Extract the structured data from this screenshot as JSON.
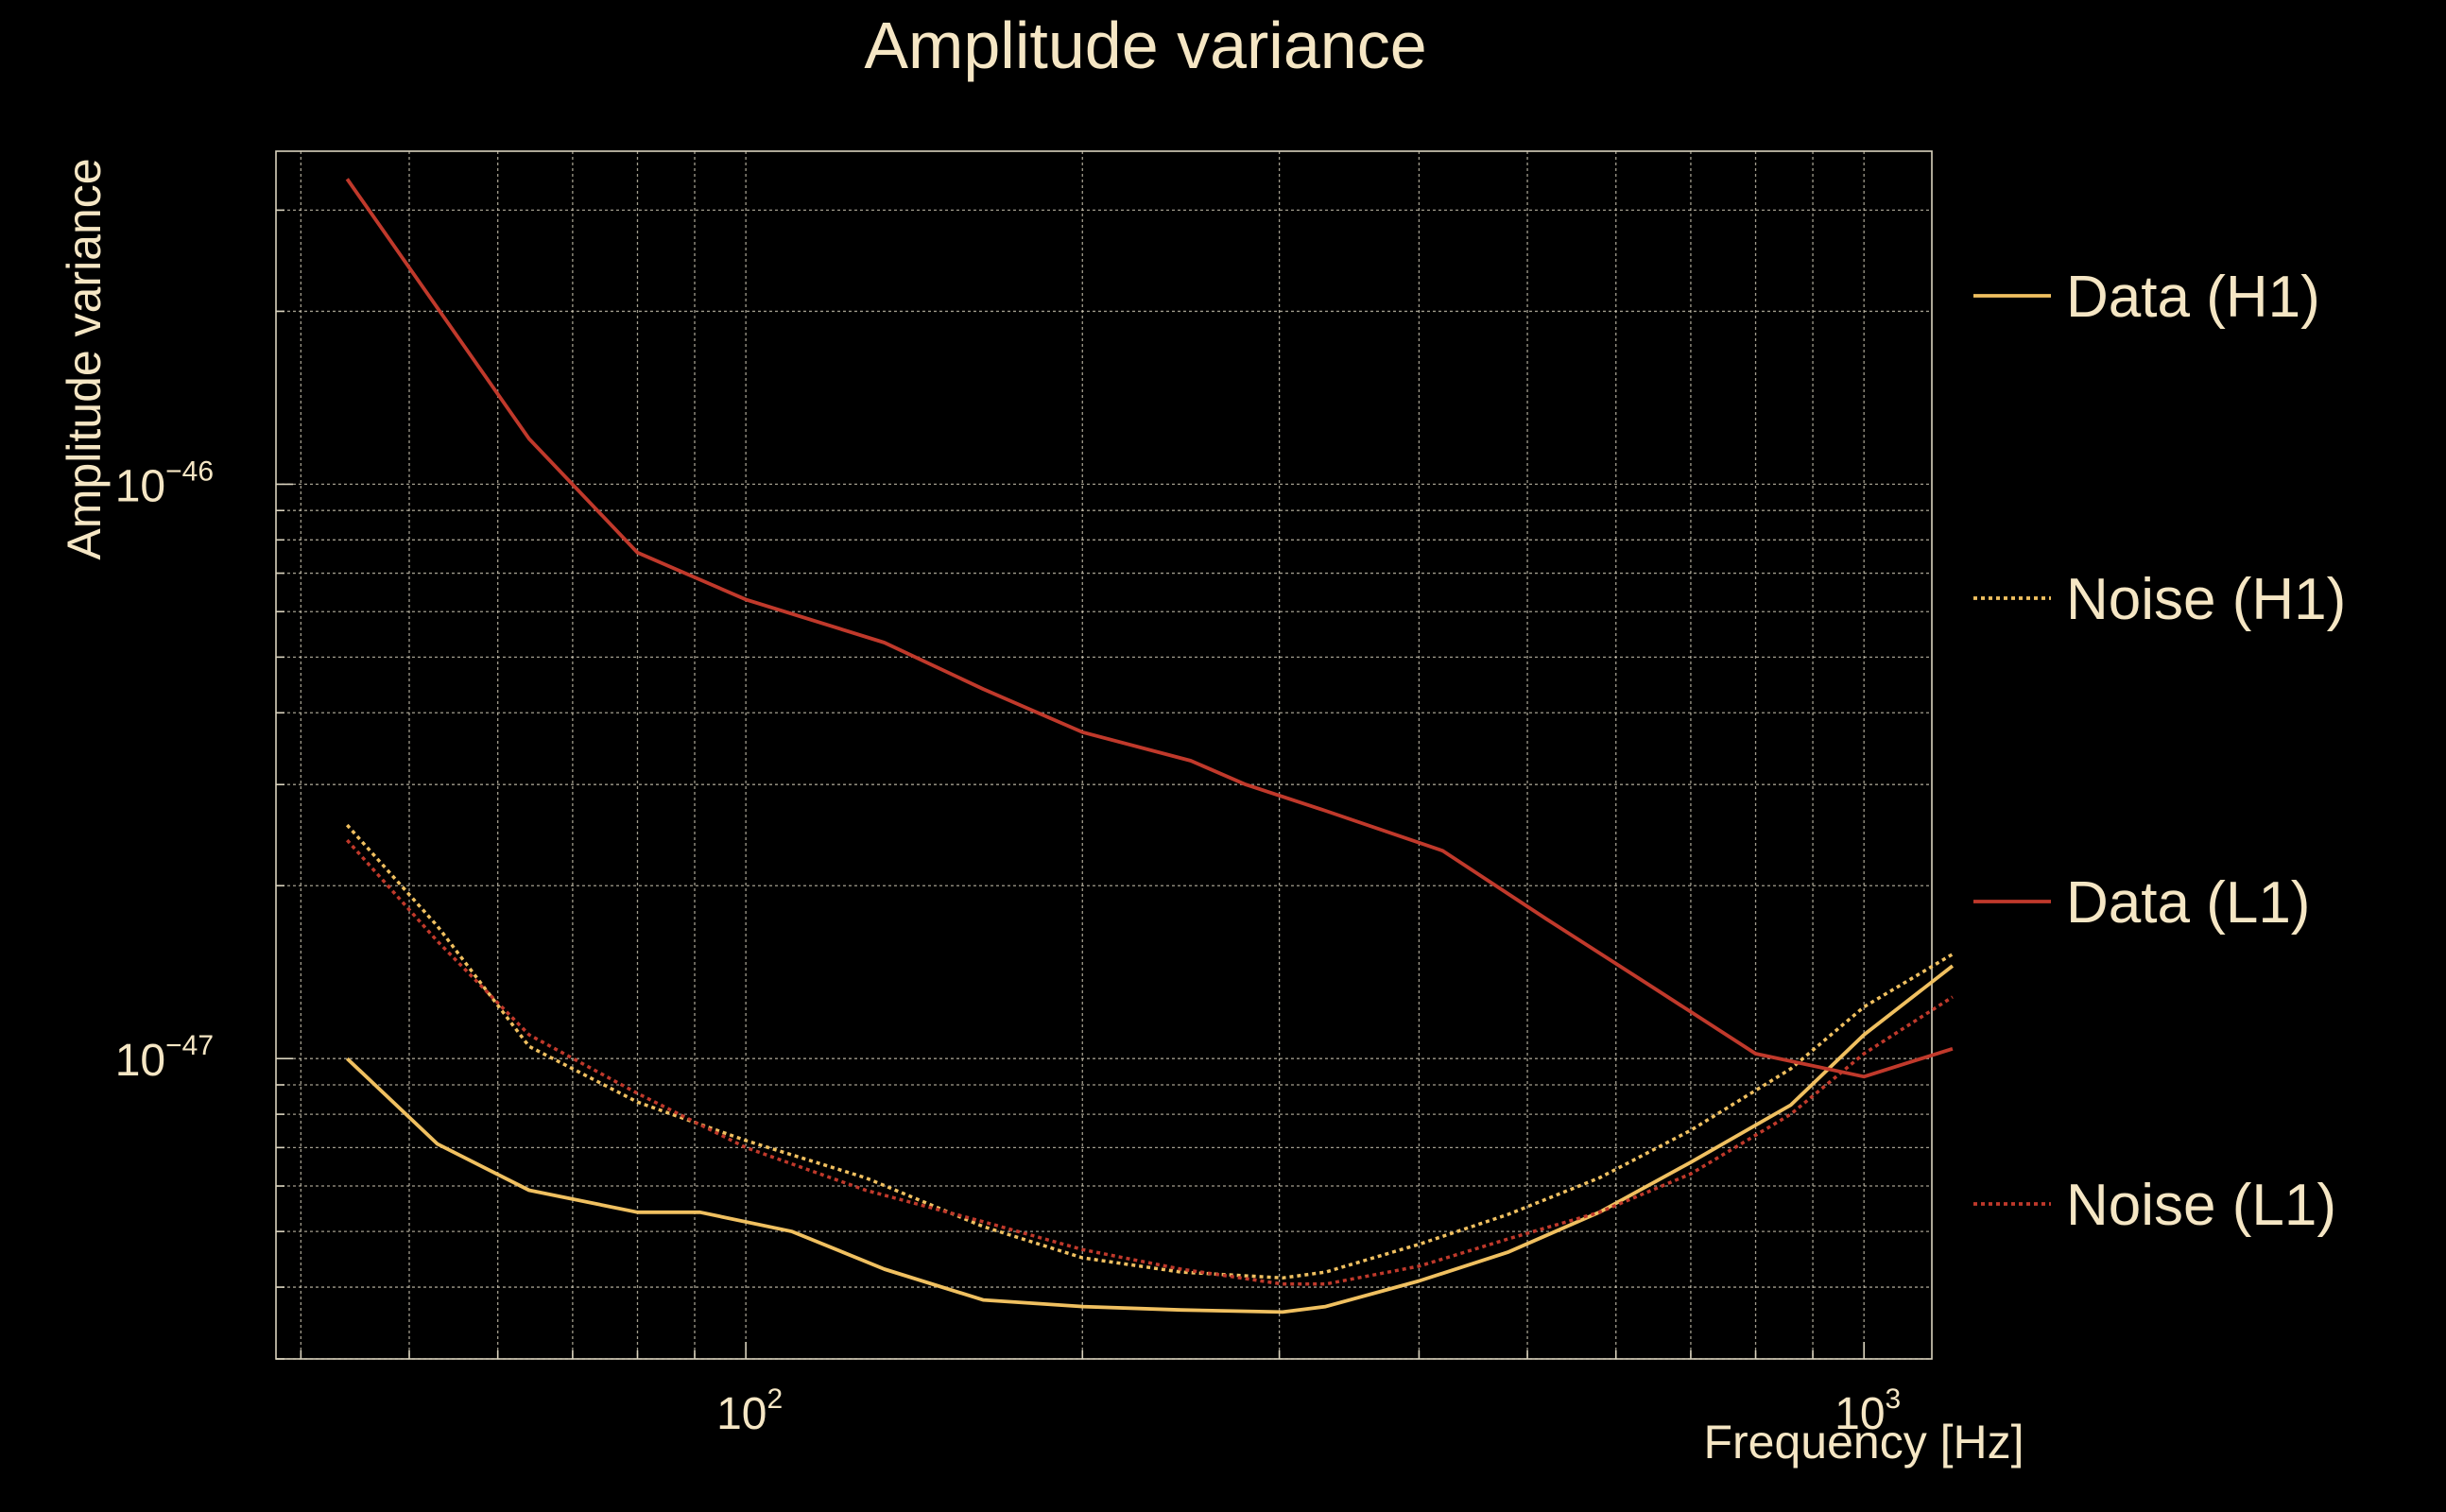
{
  "chart_data": {
    "type": "line",
    "title": "Amplitude variance",
    "xlabel": "Frequency [Hz]",
    "ylabel": "Amplitude variance",
    "xscale": "log",
    "yscale": "log",
    "xlim": [
      38,
      1150
    ],
    "ylim": [
      3e-48,
      3.8e-46
    ],
    "grid": true,
    "legend_position": "right",
    "xticks": [
      {
        "base": "10",
        "exp": "2",
        "value": 100
      },
      {
        "base": "10",
        "exp": "3",
        "value": 1000
      }
    ],
    "yticks": [
      {
        "base": "10",
        "exp": "−47",
        "value": 1e-47
      },
      {
        "base": "10",
        "exp": "−46",
        "value": 1e-46
      }
    ],
    "series": [
      {
        "name": "Data (H1)",
        "color": "#f0c060",
        "style": "solid",
        "x": [
          44,
          53,
          64,
          80,
          91,
          110,
          133,
          163,
          200,
          245,
          302,
          330,
          400,
          480,
          580,
          700,
          860,
          1000,
          1200
        ],
        "y": [
          1e-47,
          7.1e-48,
          5.9e-48,
          5.4e-48,
          5.4e-48,
          5e-48,
          4.3e-48,
          3.8e-48,
          3.7e-48,
          3.65e-48,
          3.62e-48,
          3.7e-48,
          4.1e-48,
          4.6e-48,
          5.4e-48,
          6.6e-48,
          8.3e-48,
          1.1e-47,
          1.45e-47
        ]
      },
      {
        "name": "Noise (H1)",
        "color": "#f0c060",
        "style": "dotted",
        "x": [
          44,
          53,
          64,
          80,
          100,
          128,
          163,
          200,
          245,
          302,
          330,
          400,
          480,
          580,
          700,
          860,
          1000,
          1200
        ],
        "y": [
          2.55e-47,
          1.7e-47,
          1.05e-47,
          8.4e-48,
          7.2e-48,
          6.2e-48,
          5.1e-48,
          4.5e-48,
          4.25e-48,
          4.15e-48,
          4.25e-48,
          4.75e-48,
          5.35e-48,
          6.2e-48,
          7.5e-48,
          9.6e-48,
          1.23e-47,
          1.52e-47
        ]
      },
      {
        "name": "Data (L1)",
        "color": "#c0392b",
        "style": "solid",
        "x": [
          44,
          64,
          80,
          100,
          133,
          163,
          200,
          250,
          280,
          330,
          420,
          520,
          640,
          800,
          1000,
          1200
        ],
        "y": [
          3.4e-46,
          1.2e-46,
          7.6e-47,
          6.3e-47,
          5.3e-47,
          4.4e-47,
          3.7e-47,
          3.3e-47,
          3e-47,
          2.7e-47,
          2.3e-47,
          1.75e-47,
          1.35e-47,
          1.02e-47,
          9.3e-48,
          1.04e-47
        ]
      },
      {
        "name": "Noise (L1)",
        "color": "#c0392b",
        "style": "dotted",
        "x": [
          44,
          53,
          64,
          80,
          100,
          128,
          163,
          200,
          245,
          302,
          330,
          400,
          480,
          580,
          700,
          860,
          1000,
          1200
        ],
        "y": [
          2.4e-47,
          1.6e-47,
          1.1e-47,
          8.7e-48,
          7e-48,
          5.9e-48,
          5.2e-48,
          4.65e-48,
          4.3e-48,
          4.05e-48,
          4.05e-48,
          4.35e-48,
          4.85e-48,
          5.4e-48,
          6.3e-48,
          8e-48,
          1.02e-47,
          1.28e-47
        ]
      }
    ]
  }
}
